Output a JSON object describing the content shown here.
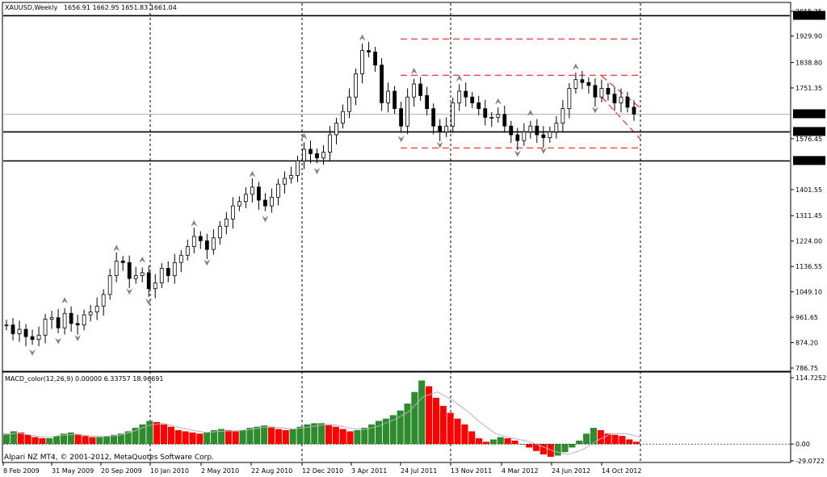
{
  "main_header": {
    "symbol": "XAUUSD,Weekly",
    "ohlc": "1656.91 1662.95 1651.83 1661.04"
  },
  "macd_header": "MACD_color(12,26,9) 0.00000 6.33757 18.96691",
  "footer": "Alpari NZ MT4, © 2001-2012, MetaQuotes Software Corp.",
  "colors": {
    "bull_body": "#ffffff",
    "bear_body": "#000000",
    "macd_up": "#2e8b2e",
    "macd_down": "#ff0000",
    "signal": "#b4b4b4",
    "channel": "#ff0000",
    "level_line": "#000000",
    "fractal": "#808080",
    "grid": "#000000"
  },
  "chart_data": [
    {
      "type": "candlestick",
      "title": "XAUUSD,Weekly",
      "ylim": [
        786.75,
        2015.25
      ],
      "y_ticks": [
        "2015.25",
        "1929.90",
        "1838.80",
        "1751.35",
        "1576.45",
        "1401.55",
        "1311.45",
        "1224.00",
        "1136.55",
        "1049.10",
        "961.65",
        "874.20",
        "786.75"
      ],
      "current_price_label": "1661.04",
      "levels": [
        {
          "value": 2000,
          "label": "2000.00"
        },
        {
          "value": 1600,
          "label": "1600.00"
        },
        {
          "value": 1500,
          "label": "1500.00"
        }
      ],
      "x_ticks": [
        "8 Feb 2009",
        "31 May 2009",
        "20 Sep 2009",
        "10 Jan 2010",
        "2 May 2010",
        "22 Aug 2010",
        "12 Dec 2010",
        "3 Apr 2011",
        "24 Jul 2011",
        "13 Nov 2011",
        "4 Mar 2012",
        "24 Jun 2012",
        "14 Oct 2012"
      ],
      "vertical_markers": [
        "10 Jan 2010",
        "12 Dec 2010",
        "13 Nov 2011",
        "after 14 Oct 2012"
      ],
      "channel_lines": [
        {
          "from": [
            "24 Jul 2011",
            1920
          ],
          "to": [
            "after 14 Oct 2012",
            1920
          ]
        },
        {
          "from": [
            "24 Jul 2011",
            1795
          ],
          "to": [
            "after 14 Oct 2012",
            1795
          ]
        },
        {
          "from": [
            "24 Jul 2011",
            1545
          ],
          "to": [
            "after 14 Oct 2012",
            1545
          ]
        },
        {
          "from": [
            "14 Oct 2012",
            1792
          ],
          "to": [
            "after 14 Oct 2012",
            1682
          ]
        },
        {
          "from": [
            "14 Oct 2012",
            1720
          ],
          "to": [
            "after 14 Oct 2012",
            1575
          ]
        }
      ],
      "close_path": [
        [
          0,
          935
        ],
        [
          8,
          905
        ],
        [
          16,
          920
        ],
        [
          24,
          895
        ],
        [
          32,
          885
        ],
        [
          40,
          900
        ],
        [
          48,
          955
        ],
        [
          56,
          960
        ],
        [
          64,
          925
        ],
        [
          72,
          975
        ],
        [
          80,
          940
        ],
        [
          88,
          935
        ],
        [
          96,
          970
        ],
        [
          104,
          980
        ],
        [
          112,
          1000
        ],
        [
          120,
          1040
        ],
        [
          128,
          1105
        ],
        [
          136,
          1155
        ],
        [
          144,
          1150
        ],
        [
          152,
          1095
        ],
        [
          160,
          1105
        ],
        [
          168,
          1115
        ],
        [
          176,
          1060
        ],
        [
          184,
          1080
        ],
        [
          192,
          1130
        ],
        [
          200,
          1105
        ],
        [
          208,
          1150
        ],
        [
          216,
          1175
        ],
        [
          224,
          1205
        ],
        [
          232,
          1240
        ],
        [
          240,
          1225
        ],
        [
          248,
          1195
        ],
        [
          256,
          1235
        ],
        [
          264,
          1275
        ],
        [
          272,
          1300
        ],
        [
          280,
          1345
        ],
        [
          288,
          1360
        ],
        [
          296,
          1385
        ],
        [
          304,
          1410
        ],
        [
          312,
          1365
        ],
        [
          320,
          1345
        ],
        [
          328,
          1375
        ],
        [
          336,
          1420
        ],
        [
          344,
          1440
        ],
        [
          352,
          1450
        ],
        [
          360,
          1500
        ],
        [
          368,
          1540
        ],
        [
          376,
          1525
        ],
        [
          384,
          1510
        ],
        [
          392,
          1530
        ],
        [
          400,
          1590
        ],
        [
          408,
          1630
        ],
        [
          416,
          1670
        ],
        [
          424,
          1720
        ],
        [
          432,
          1800
        ],
        [
          440,
          1880
        ],
        [
          448,
          1875
        ],
        [
          456,
          1830
        ],
        [
          464,
          1700
        ],
        [
          472,
          1740
        ],
        [
          480,
          1680
        ],
        [
          488,
          1620
        ],
        [
          496,
          1720
        ],
        [
          504,
          1765
        ],
        [
          512,
          1725
        ],
        [
          520,
          1680
        ],
        [
          528,
          1620
        ],
        [
          536,
          1600
        ],
        [
          544,
          1620
        ],
        [
          552,
          1700
        ],
        [
          560,
          1740
        ],
        [
          568,
          1720
        ],
        [
          576,
          1700
        ],
        [
          584,
          1680
        ],
        [
          592,
          1650
        ],
        [
          600,
          1650
        ],
        [
          608,
          1660
        ],
        [
          616,
          1620
        ],
        [
          624,
          1590
        ],
        [
          632,
          1570
        ],
        [
          640,
          1600
        ],
        [
          648,
          1620
        ],
        [
          656,
          1590
        ],
        [
          664,
          1580
        ],
        [
          672,
          1600
        ],
        [
          680,
          1630
        ],
        [
          688,
          1680
        ],
        [
          696,
          1750
        ],
        [
          704,
          1780
        ],
        [
          712,
          1770
        ],
        [
          720,
          1760
        ],
        [
          728,
          1720
        ],
        [
          736,
          1750
        ],
        [
          744,
          1730
        ],
        [
          752,
          1700
        ],
        [
          760,
          1720
        ],
        [
          768,
          1685
        ],
        [
          776,
          1661
        ]
      ]
    },
    {
      "type": "bar",
      "title": "MACD_color(12,26,9) 0.00000 6.33757 18.96691",
      "ylim": [
        -29.0722,
        114.7252
      ],
      "y_ticks": [
        "114.7252",
        "0.00",
        "-29.0722"
      ],
      "series": [
        {
          "name": "MACD",
          "values": [
            [
              0,
              18
            ],
            [
              5,
              22
            ],
            [
              10,
              20
            ],
            [
              15,
              16
            ],
            [
              20,
              12
            ],
            [
              25,
              10
            ],
            [
              30,
              10
            ],
            [
              35,
              14
            ],
            [
              40,
              18
            ],
            [
              45,
              20
            ],
            [
              50,
              17
            ],
            [
              55,
              14
            ],
            [
              60,
              12
            ],
            [
              65,
              12
            ],
            [
              70,
              14
            ],
            [
              75,
              16
            ],
            [
              80,
              18
            ],
            [
              85,
              22
            ],
            [
              90,
              28
            ],
            [
              95,
              34
            ],
            [
              100,
              40
            ],
            [
              105,
              38
            ],
            [
              110,
              34
            ],
            [
              115,
              30
            ],
            [
              120,
              24
            ],
            [
              125,
              22
            ],
            [
              130,
              20
            ],
            [
              135,
              18
            ],
            [
              140,
              20
            ],
            [
              145,
              24
            ],
            [
              150,
              26
            ],
            [
              155,
              24
            ],
            [
              160,
              22
            ],
            [
              165,
              24
            ],
            [
              170,
              28
            ],
            [
              175,
              30
            ],
            [
              180,
              32
            ],
            [
              185,
              30
            ],
            [
              190,
              26
            ],
            [
              195,
              24
            ],
            [
              200,
              26
            ],
            [
              205,
              30
            ],
            [
              210,
              34
            ],
            [
              215,
              36
            ],
            [
              220,
              36
            ],
            [
              225,
              34
            ],
            [
              230,
              30
            ],
            [
              235,
              26
            ],
            [
              240,
              22
            ],
            [
              245,
              24
            ],
            [
              250,
              28
            ],
            [
              255,
              34
            ],
            [
              260,
              40
            ],
            [
              265,
              44
            ],
            [
              270,
              50
            ],
            [
              275,
              58
            ],
            [
              280,
              70
            ],
            [
              285,
              90
            ],
            [
              290,
              110
            ],
            [
              295,
              100
            ],
            [
              300,
              80
            ],
            [
              305,
              66
            ],
            [
              310,
              54
            ],
            [
              315,
              44
            ],
            [
              320,
              34
            ],
            [
              325,
              22
            ],
            [
              330,
              10
            ],
            [
              335,
              4
            ],
            [
              340,
              8
            ],
            [
              345,
              12
            ],
            [
              350,
              10
            ],
            [
              355,
              6
            ],
            [
              360,
              0
            ],
            [
              365,
              -6
            ],
            [
              370,
              -12
            ],
            [
              375,
              -18
            ],
            [
              380,
              -22
            ],
            [
              385,
              -20
            ],
            [
              390,
              -14
            ],
            [
              395,
              -6
            ],
            [
              400,
              6
            ],
            [
              405,
              18
            ],
            [
              410,
              28
            ],
            [
              415,
              24
            ],
            [
              420,
              18
            ],
            [
              425,
              16
            ],
            [
              430,
              14
            ],
            [
              435,
              8
            ],
            [
              440,
              4
            ]
          ]
        },
        {
          "name": "Signal",
          "values": [
            [
              0,
              16
            ],
            [
              10,
              19
            ],
            [
              20,
              15
            ],
            [
              30,
              11
            ],
            [
              40,
              15
            ],
            [
              50,
              17
            ],
            [
              60,
              14
            ],
            [
              70,
              13
            ],
            [
              80,
              15
            ],
            [
              90,
              22
            ],
            [
              100,
              32
            ],
            [
              110,
              36
            ],
            [
              120,
              30
            ],
            [
              130,
              24
            ],
            [
              140,
              20
            ],
            [
              150,
              22
            ],
            [
              160,
              23
            ],
            [
              170,
              25
            ],
            [
              180,
              29
            ],
            [
              190,
              29
            ],
            [
              200,
              26
            ],
            [
              210,
              29
            ],
            [
              220,
              33
            ],
            [
              230,
              33
            ],
            [
              240,
              27
            ],
            [
              250,
              25
            ],
            [
              260,
              32
            ],
            [
              270,
              42
            ],
            [
              280,
              56
            ],
            [
              290,
              82
            ],
            [
              300,
              90
            ],
            [
              310,
              76
            ],
            [
              320,
              58
            ],
            [
              330,
              36
            ],
            [
              340,
              18
            ],
            [
              350,
              11
            ],
            [
              360,
              6
            ],
            [
              370,
              -2
            ],
            [
              380,
              -12
            ],
            [
              390,
              -18
            ],
            [
              400,
              -10
            ],
            [
              410,
              6
            ],
            [
              420,
              18
            ],
            [
              430,
              18
            ],
            [
              440,
              12
            ]
          ]
        }
      ]
    }
  ]
}
